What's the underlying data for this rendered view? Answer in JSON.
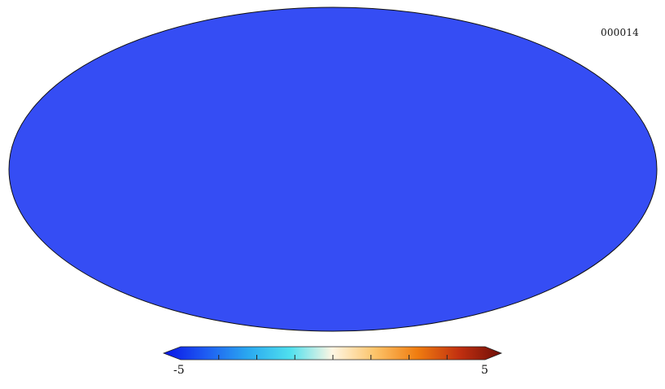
{
  "map": {
    "projection": "mollweide",
    "identifier": "000014"
  },
  "colorbar": {
    "min_label": "-5",
    "max_label": "5",
    "range": [
      -5,
      5
    ],
    "extend": "both",
    "colors": [
      "#0a14e6",
      "#1e5cf2",
      "#2aa8f0",
      "#4fe0ee",
      "#fff6e3",
      "#fcc46a",
      "#f07d10",
      "#c23010",
      "#6e0e08"
    ]
  }
}
